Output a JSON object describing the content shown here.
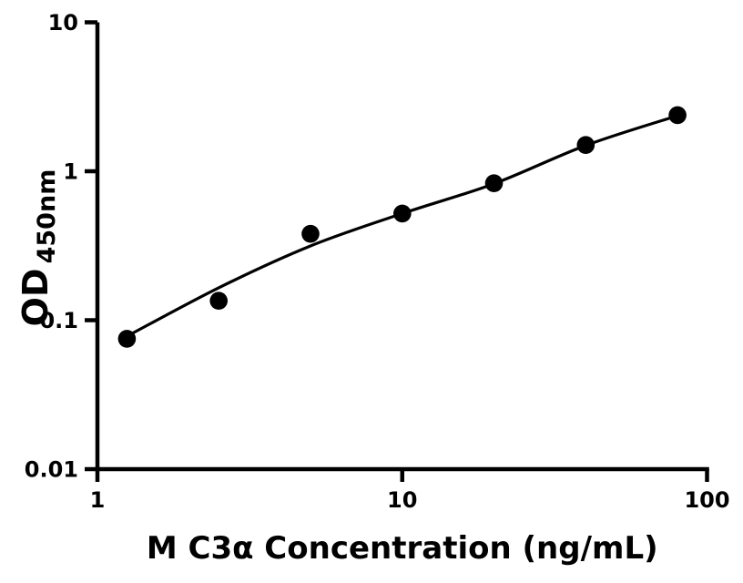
{
  "figure": {
    "background_color": "#ffffff",
    "ink_color": "#000000"
  },
  "chart_data": {
    "type": "scatter",
    "title": "",
    "xlabel": "M C3α Concentration (ng/mL)",
    "ylabel": "OD450nm",
    "ylabel_main": "OD",
    "ylabel_sub": "450nm",
    "x_scale": "log",
    "y_scale": "log",
    "xlim": [
      1,
      100
    ],
    "ylim": [
      0.01,
      10
    ],
    "grid": false,
    "legend": "none",
    "x_ticks": [
      {
        "value": 1,
        "label": "1"
      },
      {
        "value": 10,
        "label": "10"
      },
      {
        "value": 100,
        "label": "100"
      }
    ],
    "y_ticks": [
      {
        "value": 0.01,
        "label": "0.01"
      },
      {
        "value": 0.1,
        "label": "0.1"
      },
      {
        "value": 1,
        "label": "1"
      },
      {
        "value": 10,
        "label": "10"
      }
    ],
    "series": [
      {
        "name": "standard-points",
        "marker": "filled-circle",
        "marker_color": "#000000",
        "points": [
          {
            "x": 1.25,
            "y": 0.075
          },
          {
            "x": 2.5,
            "y": 0.135
          },
          {
            "x": 5,
            "y": 0.38
          },
          {
            "x": 10,
            "y": 0.52
          },
          {
            "x": 20,
            "y": 0.83
          },
          {
            "x": 40,
            "y": 1.5
          },
          {
            "x": 80,
            "y": 2.38
          }
        ]
      }
    ],
    "fit_curve": {
      "color": "#000000",
      "anchors": [
        {
          "x": 1.25,
          "y": 0.078
        },
        {
          "x": 2.5,
          "y": 0.165
        },
        {
          "x": 5,
          "y": 0.315
        },
        {
          "x": 10,
          "y": 0.52
        },
        {
          "x": 20,
          "y": 0.825
        },
        {
          "x": 40,
          "y": 1.49
        },
        {
          "x": 80,
          "y": 2.36
        }
      ]
    }
  }
}
